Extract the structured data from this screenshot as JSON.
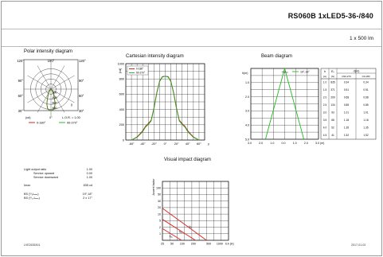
{
  "header": {
    "title": "RS060B 1xLED5-36-/840",
    "flux": "1 x 500 lm"
  },
  "polar": {
    "title": "Polar intensity diagram",
    "top_labels": [
      "120°",
      "180°",
      "120°"
    ],
    "side_labels": [
      "90°",
      "60°",
      "30°",
      "90°",
      "60°",
      "30°"
    ],
    "ring_labels": [
      "200",
      "400",
      "600",
      "800"
    ],
    "gamma_label": "γ",
    "cd_label": "(cd)",
    "zero_label": "0°",
    "lor_label": "L.O.R. = 1.00",
    "legend": [
      {
        "name": "0-180°",
        "color": "#cc1111"
      },
      {
        "name": "90-270°",
        "color": "#22aa22"
      }
    ]
  },
  "cartesian": {
    "title": "Cartesian intensity diagram",
    "cd_label": "(cd)"
  },
  "beam": {
    "title": "Beam diagram",
    "h_label": "h(m)",
    "angle_label": "¹/₂ₗₘₐₓ",
    "angle_value": "19°,18°",
    "table_headers": [
      "h",
      "Eᵥ",
      "d(m)"
    ],
    "table_subheaders": [
      "(m)",
      "(lx)",
      "C90-270",
      "C0-180"
    ],
    "table_rows": [
      [
        "1.0",
        "835",
        "0.34",
        "0.34"
      ],
      [
        "1.5",
        "371",
        "0.51",
        "0.51"
      ],
      [
        "2.0",
        "209",
        "0.68",
        "0.68"
      ],
      [
        "2.5",
        "134",
        "0.85",
        "0.85"
      ],
      [
        "3.0",
        "93",
        "1.01",
        "1.01"
      ],
      [
        "3.5",
        "68",
        "1.18",
        "1.18"
      ],
      [
        "4.0",
        "52",
        "1.35",
        "1.35"
      ],
      [
        "4.5",
        "41",
        "1.52",
        "1.52"
      ]
    ],
    "x_ticks": [
      "3.0",
      "2.0",
      "1.0",
      "0.0",
      "1.0",
      "2.0",
      "3.0 (m)"
    ],
    "y_ticks": [
      "1.0",
      "2.0",
      "3.0",
      "4.0",
      "5.0"
    ]
  },
  "visual": {
    "title": "Visual impact diagram",
    "y_label": "Accent factor",
    "y_ticks": [
      "100",
      "50",
      "30",
      "20",
      "10",
      "5",
      "2",
      "1"
    ],
    "x_ticks": [
      "25",
      "50",
      "100",
      "200",
      "500",
      "1000"
    ],
    "x_unit": "Eh (lx)",
    "line_labels": [
      "20°",
      "40°",
      "60°"
    ],
    "line_color": "#dd2222"
  },
  "light_output": {
    "rows": [
      {
        "label": "Light output ratio",
        "value": "1.00"
      },
      {
        "label": "Service upward",
        "value": "0.00"
      },
      {
        "label": "Service downward",
        "value": "1.00"
      },
      {
        "label": "",
        "value": ""
      },
      {
        "label": "Imax",
        "value": "835 cd"
      },
      {
        "label": "",
        "value": ""
      },
      {
        "label": "BS (¹/₂Iₘₐₓ)",
        "value": "19°,18°"
      },
      {
        "label": "BS (¹/₁₀Iₘₐₓ)",
        "value": "2 x 17°"
      }
    ]
  },
  "footer": {
    "code": "LVE2635301",
    "date": "2017-01-02"
  },
  "chart_data": [
    {
      "type": "line",
      "title": "Cartesian intensity diagram",
      "xlabel": "γ",
      "ylabel": "(cd)",
      "x": [
        -60,
        -50,
        -40,
        -35,
        -30,
        -25,
        -20,
        -15,
        -10,
        -5,
        0,
        5,
        10,
        15,
        20,
        25,
        30,
        35,
        40,
        50,
        60
      ],
      "series": [
        {
          "name": "0-180°",
          "color": "#cc1111",
          "values": [
            0,
            40,
            120,
            180,
            215,
            260,
            420,
            620,
            770,
            830,
            835,
            830,
            770,
            620,
            420,
            260,
            215,
            180,
            120,
            40,
            0
          ]
        },
        {
          "name": "90-270°",
          "color": "#22aa22",
          "values": [
            0,
            35,
            110,
            170,
            205,
            250,
            410,
            610,
            765,
            825,
            835,
            825,
            765,
            610,
            410,
            250,
            205,
            170,
            110,
            35,
            0
          ]
        }
      ],
      "xlim": [
        -70,
        70
      ],
      "ylim": [
        0,
        1000
      ],
      "x_ticks": [
        "-60°",
        "-40°",
        "-20°",
        "0°",
        "20°",
        "40°",
        "60°"
      ],
      "y_ticks": [
        0,
        200,
        400,
        600,
        800,
        1000
      ],
      "grid": true
    }
  ]
}
